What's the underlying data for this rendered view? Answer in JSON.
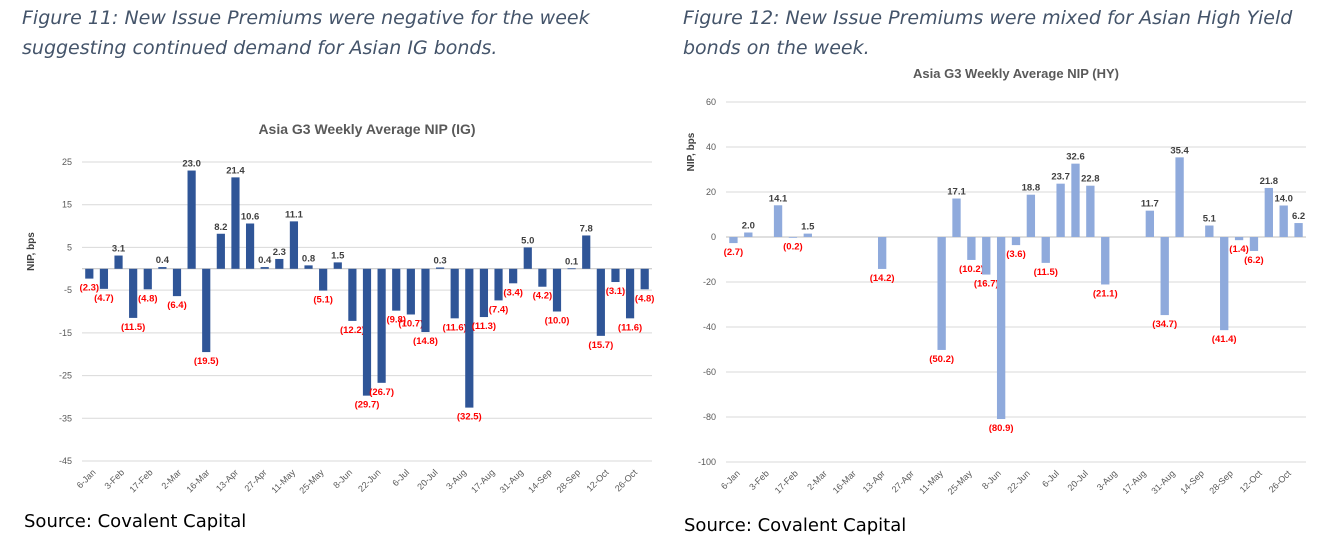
{
  "figure11": {
    "caption": "Figure 11: New Issue Premiums were negative for the week suggesting continued demand for Asian IG bonds.",
    "source": "Source: Covalent Capital"
  },
  "figure12": {
    "caption": "Figure 12: New Issue Premiums were mixed for Asian High Yield bonds on the week.",
    "source": "Source: Covalent Capital"
  },
  "colors": {
    "ig_bar": "#2f5597",
    "hy_bar": "#8faadc",
    "positive_label": "#404040",
    "negative_label": "#ff0000"
  },
  "chart_data": [
    {
      "type": "bar",
      "title": "Asia G3 Weekly Average NIP (IG)",
      "ylabel": "NIP, bps",
      "xlabel": "",
      "ylim": [
        -45,
        25
      ],
      "yticks": [
        25,
        15,
        5,
        -5,
        -15,
        -25,
        -35,
        -45
      ],
      "grid": true,
      "legend": "none",
      "x_tick_labels": [
        "6-Jan",
        "3-Feb",
        "17-Feb",
        "2-Mar",
        "16-Mar",
        "13-Apr",
        "27-Apr",
        "11-May",
        "25-May",
        "8-Jun",
        "22-Jun",
        "6-Jul",
        "20-Jul",
        "3-Aug",
        "17-Aug",
        "31-Aug",
        "14-Sep",
        "28-Sep",
        "12-Oct",
        "26-Oct"
      ],
      "values": [
        -2.3,
        -4.7,
        3.1,
        -11.5,
        -4.8,
        0.4,
        -6.4,
        23.0,
        -19.5,
        8.2,
        21.4,
        10.6,
        0.4,
        2.3,
        11.1,
        0.8,
        -5.1,
        1.5,
        -12.2,
        -29.7,
        -26.7,
        -9.8,
        -10.7,
        -14.8,
        0.3,
        -11.6,
        -32.5,
        -11.3,
        -7.4,
        -3.4,
        5.0,
        -4.2,
        -10.0,
        0.1,
        7.8,
        -15.7,
        -3.1,
        -11.6,
        -4.8
      ],
      "data_labels": [
        "(2.3)",
        "(4.7)",
        "3.1",
        "(11.5)",
        "(4.8)",
        "0.4",
        "(6.4)",
        "23.0",
        "(19.5)",
        "8.2",
        "21.4",
        "10.6",
        "0.4",
        "2.3",
        "11.1",
        "0.8",
        "(5.1)",
        "1.5",
        "(12.2)",
        "(29.7)",
        "(26.7)",
        "(9.8)",
        "(10.7)",
        "(14.8)",
        "0.3",
        "(11.6)",
        "(32.5)",
        "(11.3)",
        "(7.4)",
        "(3.4)",
        "5.0",
        "(4.2)",
        "(10.0)",
        "0.1",
        "7.8",
        "(15.7)",
        "(3.1)",
        "(11.6)",
        "(4.8)"
      ]
    },
    {
      "type": "bar",
      "title": "Asia G3 Weekly Average NIP (HY)",
      "ylabel": "NIP, bps",
      "xlabel": "",
      "ylim": [
        -100,
        60
      ],
      "yticks": [
        60,
        40,
        20,
        0,
        -20,
        -40,
        -60,
        -80,
        -100
      ],
      "grid": true,
      "legend": "none",
      "x_tick_labels": [
        "6-Jan",
        "3-Feb",
        "17-Feb",
        "2-Mar",
        "16-Mar",
        "13-Apr",
        "27-Apr",
        "11-May",
        "25-May",
        "8-Jun",
        "22-Jun",
        "6-Jul",
        "20-Jul",
        "3-Aug",
        "17-Aug",
        "31-Aug",
        "14-Sep",
        "28-Sep",
        "12-Oct",
        "26-Oct"
      ],
      "values": [
        -2.7,
        2.0,
        null,
        14.1,
        -0.2,
        1.5,
        null,
        null,
        null,
        null,
        -14.2,
        null,
        null,
        null,
        -50.2,
        17.1,
        -10.2,
        -16.7,
        -80.9,
        -3.6,
        18.8,
        -11.5,
        23.7,
        32.6,
        22.8,
        -21.1,
        null,
        null,
        11.7,
        -34.7,
        35.4,
        null,
        5.1,
        -41.4,
        -1.4,
        -6.2,
        21.8,
        14.0,
        6.2
      ],
      "data_labels": [
        "(2.7)",
        "2.0",
        null,
        "14.1",
        "(0.2)",
        "1.5",
        null,
        null,
        null,
        null,
        "(14.2)",
        null,
        null,
        null,
        "(50.2)",
        "17.1",
        "(10.2)",
        "(16.7)",
        "(80.9)",
        "(3.6)",
        "18.8",
        "(11.5)",
        "23.7",
        "32.6",
        "22.8",
        "(21.1)",
        null,
        null,
        "11.7",
        "(34.7)",
        "35.4",
        null,
        "5.1",
        "(41.4)",
        "(1.4)",
        "(6.2)",
        "21.8",
        "14.0",
        "6.2"
      ]
    }
  ]
}
